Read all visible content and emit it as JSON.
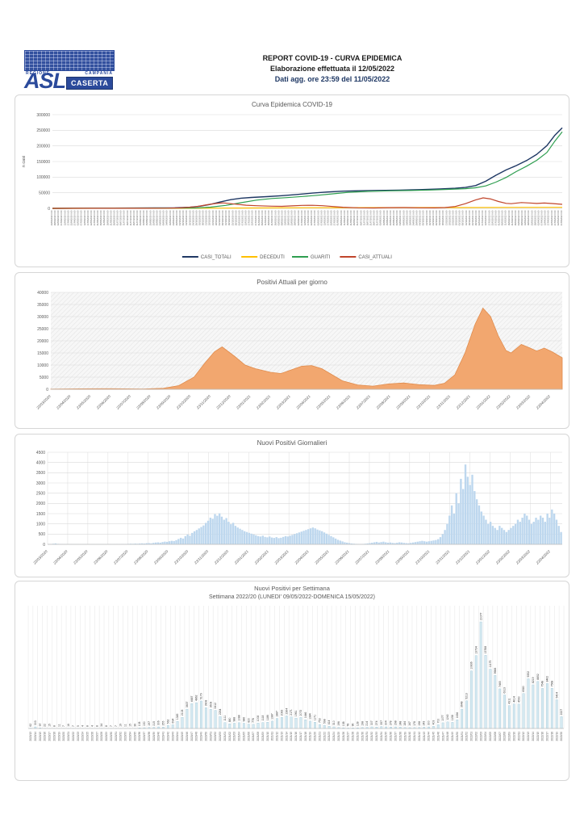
{
  "header": {
    "title_line1": "REPORT COVID-19 - CURVA EPIDEMICA",
    "title_line2": "Elaborazione effettuata il 12/05/2022",
    "title_line3": "Dati agg. ore 23:59 del 11/05/2022",
    "logo": {
      "regione": "REGIONE",
      "campania": "CAMPANIA",
      "asl": "ASL",
      "caserta": "CASERTA"
    }
  },
  "colors": {
    "casi_totali": "#1f3864",
    "deceduti": "#ffc000",
    "guariti": "#2e9e50",
    "casi_attuali": "#c0452b",
    "area_fill": "#f2a76f",
    "area_stroke": "#e08c4d",
    "daily_bar": "#bdd7ee",
    "weekly_bar_fill": "#d6eaf2",
    "weekly_bar_stroke": "#9dc3d4",
    "grid": "#d9d9d9",
    "axis_text": "#595959"
  },
  "month_labels": [
    "23/03/2020",
    "23/04/2020",
    "23/05/2020",
    "23/06/2020",
    "23/07/2020",
    "23/08/2020",
    "23/09/2020",
    "23/10/2020",
    "23/11/2020",
    "23/12/2020",
    "23/01/2021",
    "23/02/2021",
    "23/03/2021",
    "23/04/2021",
    "23/05/2021",
    "23/06/2021",
    "23/07/2021",
    "23/08/2021",
    "23/09/2021",
    "23/10/2021",
    "23/11/2021",
    "23/12/2021",
    "23/01/2022",
    "23/02/2022",
    "23/03/2022",
    "23/04/2022"
  ],
  "chart_data": [
    {
      "type": "line",
      "title": "Curva Epidemica COVID-19",
      "ylabel": "n casi",
      "ylim": [
        0,
        300000
      ],
      "ytick_step": 50000,
      "x_axis": {
        "first_label": "23/03/2020",
        "step_days": 5,
        "count": 156,
        "suffix": " 0:00"
      },
      "legend_position": "bottom",
      "series": [
        {
          "name": "CASI_TOTALI",
          "color_key": "casi_totali",
          "points": [
            [
              0,
              0
            ],
            [
              0.04,
              400
            ],
            [
              0.08,
              700
            ],
            [
              0.12,
              900
            ],
            [
              0.16,
              1000
            ],
            [
              0.2,
              1200
            ],
            [
              0.24,
              1700
            ],
            [
              0.27,
              3500
            ],
            [
              0.29,
              7000
            ],
            [
              0.31,
              13000
            ],
            [
              0.33,
              21000
            ],
            [
              0.35,
              28000
            ],
            [
              0.37,
              32500
            ],
            [
              0.39,
              35000
            ],
            [
              0.42,
              37500
            ],
            [
              0.45,
              40500
            ],
            [
              0.48,
              44500
            ],
            [
              0.51,
              49000
            ],
            [
              0.54,
              52500
            ],
            [
              0.57,
              55000
            ],
            [
              0.6,
              56500
            ],
            [
              0.64,
              57500
            ],
            [
              0.68,
              58500
            ],
            [
              0.72,
              60000
            ],
            [
              0.76,
              62000
            ],
            [
              0.79,
              64500
            ],
            [
              0.81,
              67000
            ],
            [
              0.83,
              73000
            ],
            [
              0.85,
              87000
            ],
            [
              0.87,
              106000
            ],
            [
              0.89,
              123000
            ],
            [
              0.91,
              137000
            ],
            [
              0.93,
              153000
            ],
            [
              0.95,
              173000
            ],
            [
              0.97,
              201000
            ],
            [
              0.985,
              233000
            ],
            [
              1,
              258000
            ]
          ]
        },
        {
          "name": "DECEDUTI",
          "color_key": "deceduti",
          "points": [
            [
              0,
              0
            ],
            [
              0.25,
              350
            ],
            [
              0.33,
              700
            ],
            [
              0.4,
              1300
            ],
            [
              0.5,
              1950
            ],
            [
              0.6,
              2300
            ],
            [
              0.7,
              2500
            ],
            [
              0.8,
              2700
            ],
            [
              0.9,
              3000
            ],
            [
              1,
              3250
            ]
          ]
        },
        {
          "name": "GUARITI",
          "color_key": "guariti",
          "points": [
            [
              0,
              0
            ],
            [
              0.08,
              250
            ],
            [
              0.16,
              550
            ],
            [
              0.24,
              850
            ],
            [
              0.28,
              1400
            ],
            [
              0.31,
              3800
            ],
            [
              0.34,
              9500
            ],
            [
              0.37,
              18000
            ],
            [
              0.4,
              26500
            ],
            [
              0.43,
              31500
            ],
            [
              0.46,
              34500
            ],
            [
              0.49,
              38000
            ],
            [
              0.52,
              42000
            ],
            [
              0.55,
              46500
            ],
            [
              0.58,
              51500
            ],
            [
              0.62,
              54500
            ],
            [
              0.66,
              56000
            ],
            [
              0.7,
              57200
            ],
            [
              0.74,
              58800
            ],
            [
              0.78,
              61000
            ],
            [
              0.81,
              63000
            ],
            [
              0.83,
              66000
            ],
            [
              0.85,
              72000
            ],
            [
              0.87,
              84000
            ],
            [
              0.89,
              99000
            ],
            [
              0.91,
              118000
            ],
            [
              0.93,
              135000
            ],
            [
              0.95,
              154000
            ],
            [
              0.97,
              179000
            ],
            [
              0.985,
              214000
            ],
            [
              1,
              245000
            ]
          ]
        },
        {
          "name": "CASI_ATTUALI",
          "color_key": "casi_attuali",
          "points": [
            [
              0,
              50
            ],
            [
              0.06,
              200
            ],
            [
              0.12,
              250
            ],
            [
              0.18,
              150
            ],
            [
              0.22,
              400
            ],
            [
              0.25,
              1500
            ],
            [
              0.28,
              5000
            ],
            [
              0.3,
              10500
            ],
            [
              0.32,
              15500
            ],
            [
              0.335,
              17500
            ],
            [
              0.36,
              13500
            ],
            [
              0.38,
              10000
            ],
            [
              0.4,
              8500
            ],
            [
              0.43,
              7000
            ],
            [
              0.45,
              6500
            ],
            [
              0.47,
              8000
            ],
            [
              0.49,
              9500
            ],
            [
              0.51,
              9800
            ],
            [
              0.53,
              8500
            ],
            [
              0.55,
              6000
            ],
            [
              0.57,
              3500
            ],
            [
              0.6,
              1800
            ],
            [
              0.63,
              1300
            ],
            [
              0.66,
              2200
            ],
            [
              0.69,
              2600
            ],
            [
              0.72,
              1900
            ],
            [
              0.75,
              1600
            ],
            [
              0.77,
              2500
            ],
            [
              0.79,
              6000
            ],
            [
              0.81,
              15000
            ],
            [
              0.83,
              27000
            ],
            [
              0.845,
              33500
            ],
            [
              0.86,
              30000
            ],
            [
              0.875,
              22000
            ],
            [
              0.89,
              16000
            ],
            [
              0.9,
              15000
            ],
            [
              0.92,
              18500
            ],
            [
              0.935,
              17200
            ],
            [
              0.95,
              15800
            ],
            [
              0.965,
              17000
            ],
            [
              0.98,
              15500
            ],
            [
              1,
              13000
            ]
          ]
        }
      ]
    },
    {
      "type": "area",
      "title": "Positivi Attuali per giorno",
      "ylim": [
        0,
        40000
      ],
      "ytick_step": 5000,
      "hatched_background": true,
      "points": [
        [
          0,
          50
        ],
        [
          0.06,
          200
        ],
        [
          0.12,
          250
        ],
        [
          0.18,
          150
        ],
        [
          0.22,
          400
        ],
        [
          0.25,
          1500
        ],
        [
          0.28,
          5000
        ],
        [
          0.3,
          10500
        ],
        [
          0.32,
          15500
        ],
        [
          0.335,
          17500
        ],
        [
          0.36,
          13500
        ],
        [
          0.38,
          10000
        ],
        [
          0.4,
          8500
        ],
        [
          0.43,
          7000
        ],
        [
          0.45,
          6500
        ],
        [
          0.47,
          8000
        ],
        [
          0.49,
          9500
        ],
        [
          0.51,
          9800
        ],
        [
          0.53,
          8500
        ],
        [
          0.55,
          6000
        ],
        [
          0.57,
          3500
        ],
        [
          0.6,
          1800
        ],
        [
          0.63,
          1300
        ],
        [
          0.66,
          2200
        ],
        [
          0.69,
          2600
        ],
        [
          0.72,
          1900
        ],
        [
          0.75,
          1600
        ],
        [
          0.77,
          2500
        ],
        [
          0.79,
          6000
        ],
        [
          0.81,
          15000
        ],
        [
          0.83,
          27000
        ],
        [
          0.845,
          33500
        ],
        [
          0.86,
          30000
        ],
        [
          0.875,
          22000
        ],
        [
          0.89,
          16000
        ],
        [
          0.9,
          15000
        ],
        [
          0.92,
          18500
        ],
        [
          0.935,
          17200
        ],
        [
          0.95,
          15800
        ],
        [
          0.965,
          17000
        ],
        [
          0.98,
          15500
        ],
        [
          1,
          13000
        ]
      ]
    },
    {
      "type": "bar",
      "title": "Nuovi Positivi Giornalieri",
      "ylim": [
        0,
        4500
      ],
      "ytick_step": 500,
      "values": [
        8,
        15,
        30,
        45,
        25,
        18,
        12,
        9,
        6,
        4,
        7,
        5,
        3,
        2,
        3,
        4,
        6,
        3,
        2,
        4,
        2,
        3,
        5,
        3,
        2,
        4,
        6,
        8,
        5,
        9,
        12,
        8,
        15,
        11,
        18,
        24,
        32,
        27,
        38,
        30,
        42,
        48,
        40,
        56,
        62,
        50,
        72,
        88,
        96,
        82,
        112,
        132,
        122,
        152,
        172,
        162,
        205,
        262,
        318,
        282,
        402,
        478,
        422,
        558,
        638,
        702,
        778,
        848,
        922,
        1048,
        1152,
        1302,
        1252,
        1478,
        1397,
        1515,
        1352,
        1202,
        1282,
        1102,
        982,
        1052,
        902,
        822,
        762,
        702,
        642,
        602,
        562,
        522,
        482,
        442,
        402,
        382,
        422,
        362,
        342,
        382,
        332,
        312,
        352,
        302,
        322,
        362,
        402,
        382,
        422,
        462,
        502,
        542,
        582,
        622,
        662,
        702,
        742,
        782,
        822,
        782,
        722,
        682,
        642,
        582,
        522,
        462,
        402,
        342,
        282,
        222,
        182,
        142,
        102,
        82,
        62,
        42,
        32,
        22,
        15,
        10,
        20,
        30,
        45,
        60,
        80,
        100,
        120,
        90,
        110,
        130,
        100,
        80,
        90,
        70,
        60,
        80,
        100,
        90,
        70,
        60,
        50,
        70,
        90,
        110,
        130,
        150,
        170,
        150,
        130,
        150,
        170,
        190,
        210,
        252,
        352,
        502,
        702,
        1002,
        1402,
        1902,
        1502,
        2502,
        2002,
        3202,
        2702,
        3902,
        3302,
        2902,
        3402,
        2602,
        2202,
        1902,
        1602,
        1402,
        1202,
        1002,
        1102,
        902,
        802,
        702,
        902,
        802,
        702,
        602,
        702,
        802,
        902,
        1002,
        1202,
        1102,
        1302,
        1502,
        1402,
        1202,
        1002,
        1102,
        1302,
        1202,
        1402,
        1302,
        1102,
        1502,
        1302,
        1702,
        1502,
        1202,
        902,
        602
      ]
    },
    {
      "type": "bar",
      "title": "Nuovi Positivi per Settimana",
      "subtitle": "Settimana 2022/20 (LUNEDI' 09/05/2022-DOMENICA 15/05/2022)",
      "week_ranges": [
        {
          "year": "2020",
          "from": 13,
          "to": 53
        },
        {
          "year": "2021",
          "from": 1,
          "to": 52
        },
        {
          "year": "2022",
          "from": 1,
          "to": 20
        }
      ],
      "show_value_labels": true,
      "values": [
        62,
        303,
        97,
        22,
        15,
        8,
        11,
        7,
        16,
        7,
        5,
        4,
        8,
        4,
        8,
        34,
        8,
        7,
        7,
        19,
        11,
        15,
        36,
        108,
        150,
        197,
        215,
        306,
        255,
        562,
        694,
        1345,
        2108,
        3637,
        4687,
        4862,
        5179,
        3908,
        3608,
        3412,
        2264,
        1111,
        880,
        988,
        1088,
        986,
        820,
        778,
        1008,
        1118,
        1186,
        1387,
        1887,
        2083,
        2364,
        2171,
        1961,
        2073,
        1646,
        1384,
        1171,
        753,
        598,
        414,
        310,
        196,
        138,
        78,
        96,
        128,
        198,
        214,
        307,
        274,
        357,
        304,
        278,
        298,
        248,
        184,
        167,
        178,
        198,
        243,
        300,
        403,
        700,
        1077,
        1240,
        1158,
        1636,
        3648,
        5213,
        10836,
        13734,
        20077,
        13788,
        11175,
        9988,
        7465,
        6313,
        4311,
        4614,
        4590,
        6580,
        9352,
        8219,
        8852,
        7548,
        8462,
        7568,
        5404,
        2227
      ]
    }
  ]
}
